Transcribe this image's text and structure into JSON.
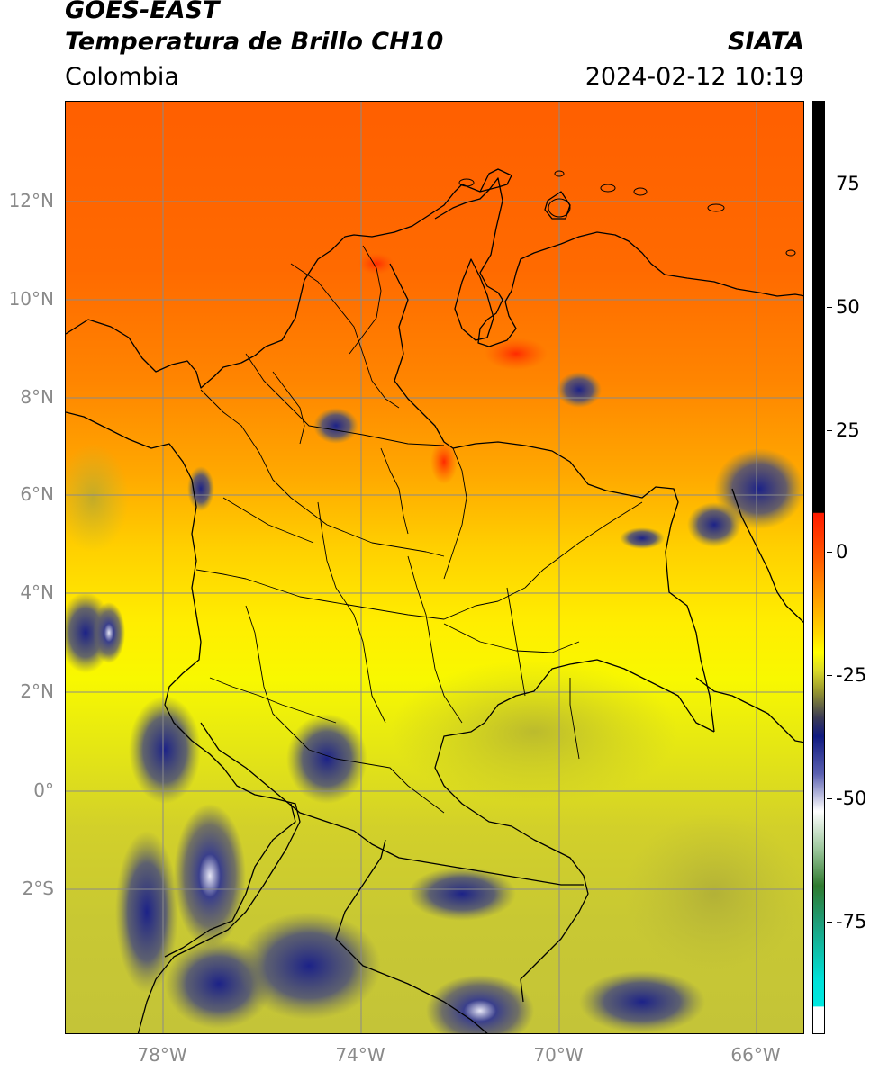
{
  "header": {
    "satellite": "GOES-EAST",
    "product": "Temperatura de Brillo CH10",
    "region": "Colombia",
    "organization": "SIATA",
    "timestamp": "2024-02-12 10:19"
  },
  "map": {
    "lat_labels": [
      "12°N",
      "10°N",
      "8°N",
      "6°N",
      "4°N",
      "2°N",
      "0°",
      "2°S"
    ],
    "lon_labels": [
      "78°W",
      "74°W",
      "70°W",
      "66°W"
    ],
    "gridline_color": "#8a8a8a"
  },
  "colorbar": {
    "tick_labels": [
      "75",
      "50",
      "25",
      "0",
      "-25",
      "-50",
      "-75"
    ],
    "colors": {
      "warm_limit": "#000000",
      "red": "#ff1a00",
      "orange": "#ff8c00",
      "yellow": "#ffff00",
      "olive": "#9c9c2e",
      "navy": "#101a80",
      "white": "#ffffff",
      "green": "#2f7a2f",
      "teal": "#00e0d8"
    }
  }
}
